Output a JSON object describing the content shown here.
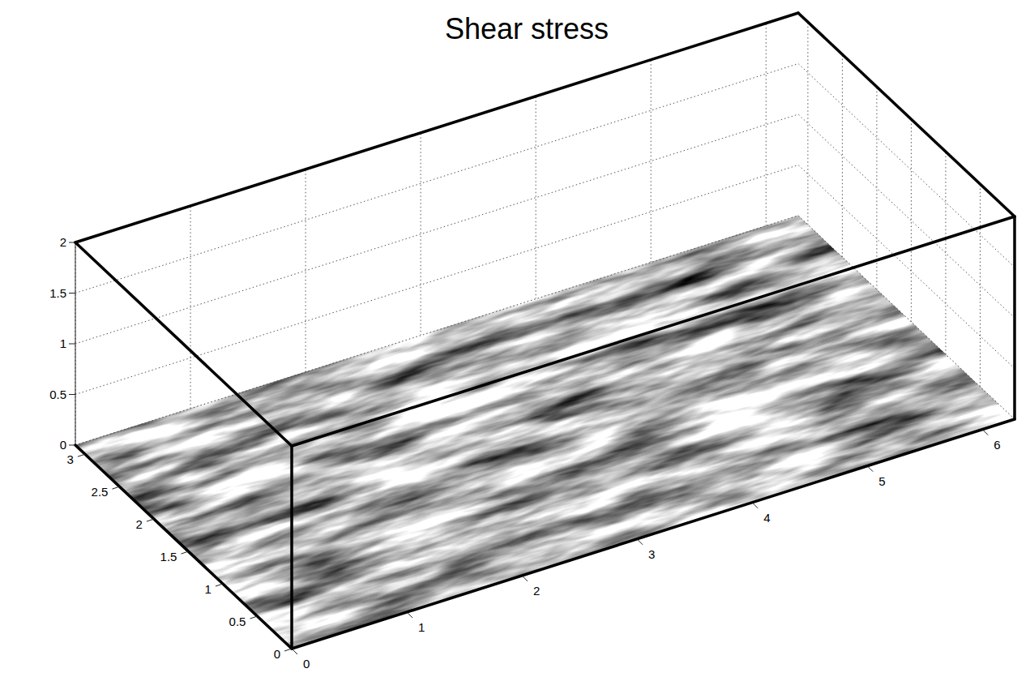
{
  "chart_data": {
    "type": "surface3d",
    "title": "Shear stress",
    "xlim": [
      0,
      6.28
    ],
    "xticks": [
      0,
      1,
      2,
      3,
      4,
      5,
      6
    ],
    "ylim": [
      0,
      3.14
    ],
    "yticks": [
      0,
      0.5,
      1,
      1.5,
      2,
      2.5,
      3
    ],
    "zlim": [
      0,
      2
    ],
    "zticks": [
      0,
      0.5,
      1,
      1.5,
      2
    ],
    "grid": true
  }
}
